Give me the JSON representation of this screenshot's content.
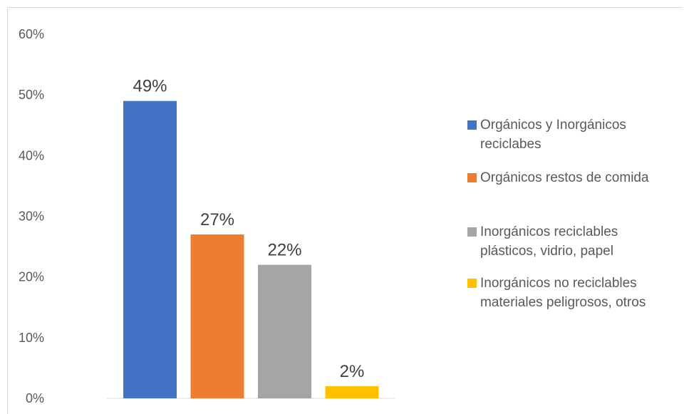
{
  "chart_data": {
    "type": "bar",
    "categories": [
      "Orgánicos y  Inorgánicos reciclabes",
      "Orgánicos restos de comida",
      "Inorgánicos reciclables plásticos, vidrio, papel",
      "Inorgánicos no reciclables materiales peligrosos, otros"
    ],
    "values": [
      49,
      27,
      22,
      2
    ],
    "data_labels": [
      "49%",
      "27%",
      "22%",
      "2%"
    ],
    "colors": [
      "#4472c4",
      "#ed7d31",
      "#a5a5a5",
      "#ffc000"
    ],
    "y_ticks": [
      "0%",
      "10%",
      "20%",
      "30%",
      "40%",
      "50%",
      "60%"
    ],
    "ylim": [
      0,
      60
    ],
    "grid": false,
    "legend_position": "right",
    "title": "",
    "xlabel": "",
    "ylabel": ""
  },
  "legend": [
    {
      "line1": "Orgánicos y  Inorgánicos",
      "line2": "reciclabes",
      "color": "#4472c4"
    },
    {
      "line1": "Orgánicos restos de comida",
      "line2": "",
      "color": "#ed7d31"
    },
    {
      "line1": "Inorgánicos reciclables",
      "line2": "plásticos, vidrio, papel",
      "color": "#a5a5a5"
    },
    {
      "line1": "Inorgánicos no reciclables",
      "line2": "materiales peligrosos, otros",
      "color": "#ffc000"
    }
  ]
}
